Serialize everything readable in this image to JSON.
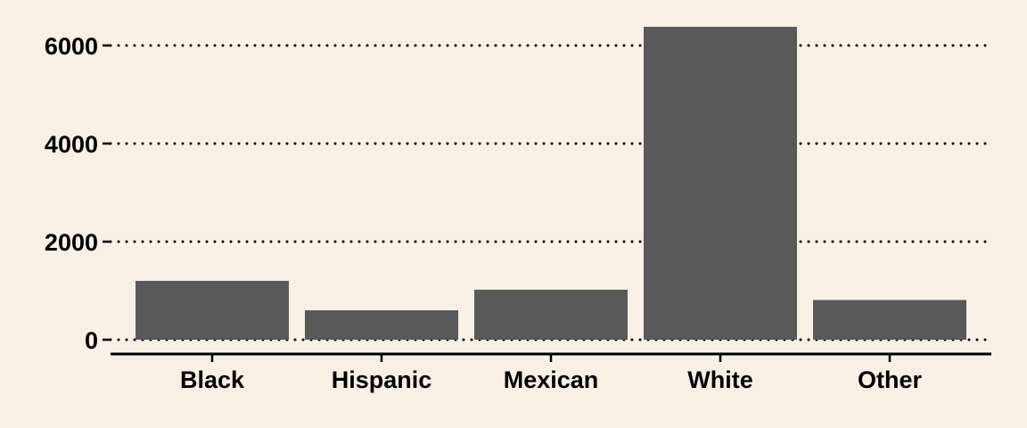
{
  "chart_data": {
    "type": "bar",
    "title": "",
    "xlabel": "",
    "ylabel": "",
    "categories": [
      "Black",
      "Hispanic",
      "Mexican",
      "White",
      "Other"
    ],
    "values": [
      1200,
      600,
      1020,
      6380,
      810
    ],
    "ylim": [
      0,
      6600
    ],
    "yticks": [
      0,
      2000,
      4000,
      6000
    ],
    "ytick_labels": [
      "0",
      "2000",
      "4000",
      "6000"
    ],
    "grid": "horizontal-dotted",
    "legend": "none"
  },
  "colors": {
    "background": "#f6f1e4",
    "bar": "#595959",
    "grid": "#000000",
    "axis": "#000000",
    "text": "#000000"
  }
}
